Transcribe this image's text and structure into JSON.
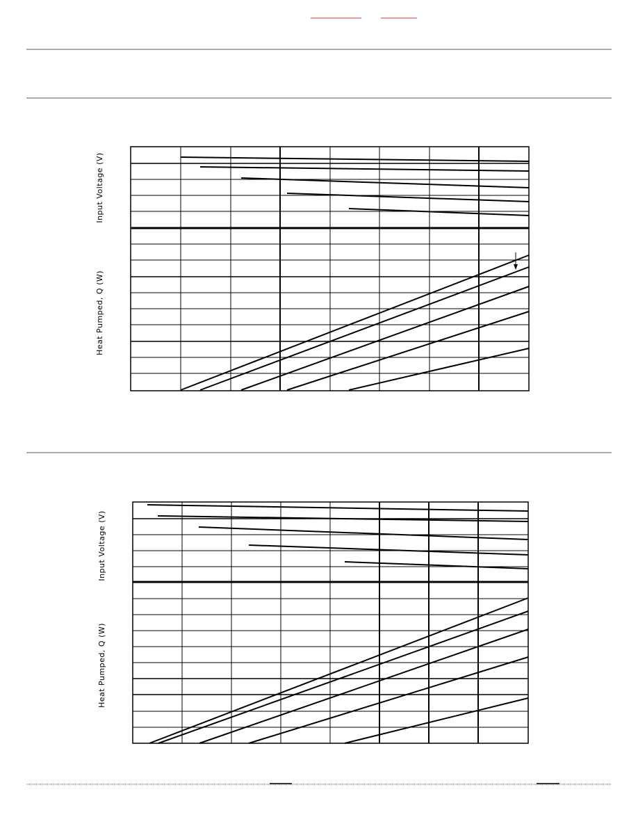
{
  "charts": [
    {
      "upper_axis_label": "Input Voltage (V)",
      "lower_axis_label": "Heat Pumped, Q (W)"
    },
    {
      "upper_axis_label": "Input Voltage (V)",
      "lower_axis_label": "Heat Pumped, Q (W)"
    }
  ]
}
